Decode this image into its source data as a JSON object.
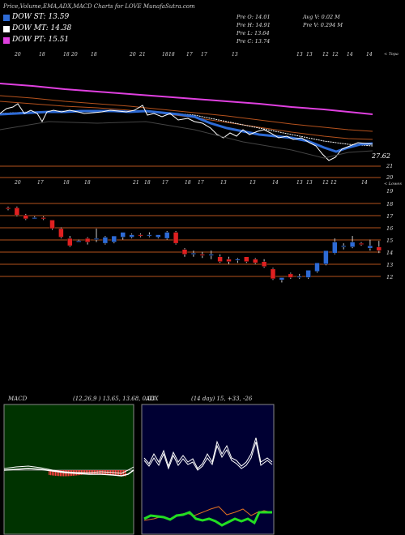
{
  "title": "Price,Volume,EMA,ADX,MACD Charts for LOVE MunafaSutra.com",
  "legend": [
    {
      "label": "DOW ST: 13.59",
      "color": "#2e6bd6",
      "icon": "square"
    },
    {
      "label": "DOW MT: 14.38",
      "color": "#ffffff",
      "icon": "square"
    },
    {
      "label": "DOW PT: 15.51",
      "color": "#e040e0",
      "icon": "square"
    }
  ],
  "stats": {
    "open": "Pre   O: 14.01",
    "high": "Pre   H: 14.91",
    "low": "Pre   L: 13.64",
    "close": "Pre   C: 13.74",
    "avgvol": "Avg V: 0.02  M",
    "prevol": "Pre   V: 0.294  M"
  },
  "top_day_labels": [
    "20",
    "18",
    "18",
    "20",
    "18",
    "20",
    "21",
    "18",
    "18",
    "17",
    "17",
    "13",
    "13",
    "13",
    "12",
    "12",
    "14",
    "14"
  ],
  "top_label": "< Topa",
  "ema_value_label": "27.62",
  "price_axis": [
    "21",
    "20",
    "19",
    "18",
    "17",
    "16",
    "15",
    "14",
    "13",
    "12"
  ],
  "mid_day_labels": [
    "20",
    "17",
    "18",
    "18",
    "21",
    "18",
    "17",
    "18",
    "17",
    "13",
    "13",
    "14",
    "13",
    "13",
    "12",
    "12",
    "14"
  ],
  "lower_label": "< Lowes",
  "macd": {
    "label": "MACD",
    "params": "(12,26,9 ) 13.65,  13.68,  0.03"
  },
  "adx": {
    "label": "ADX",
    "params": "(14  day) 15,  +33,  -26"
  },
  "chart_data": {
    "type": "candlestick",
    "candles": [
      {
        "o": 17.6,
        "h": 17.7,
        "c": 17.5,
        "l": 17.4
      },
      {
        "o": 17.6,
        "h": 17.7,
        "c": 17.0,
        "l": 16.9
      },
      {
        "o": 17.0,
        "h": 17.1,
        "c": 16.7,
        "l": 16.6
      },
      {
        "o": 16.8,
        "h": 16.9,
        "c": 16.8,
        "l": 16.7
      },
      {
        "o": 16.8,
        "h": 16.9,
        "c": 16.7,
        "l": 16.6
      },
      {
        "o": 16.6,
        "h": 16.6,
        "c": 15.9,
        "l": 15.8
      },
      {
        "o": 15.9,
        "h": 16.0,
        "c": 15.2,
        "l": 15.1
      },
      {
        "o": 15.1,
        "h": 15.3,
        "c": 14.5,
        "l": 14.4
      },
      {
        "o": 14.9,
        "h": 15.0,
        "c": 14.9,
        "l": 14.8
      },
      {
        "o": 15.1,
        "h": 15.2,
        "c": 14.8,
        "l": 14.6
      },
      {
        "o": 15.1,
        "h": 15.9,
        "c": 15.1,
        "l": 14.8
      },
      {
        "o": 14.7,
        "h": 15.3,
        "c": 15.2,
        "l": 14.6
      },
      {
        "o": 14.8,
        "h": 15.3,
        "c": 15.3,
        "l": 14.7
      },
      {
        "o": 15.2,
        "h": 15.6,
        "c": 15.6,
        "l": 15.0
      },
      {
        "o": 15.2,
        "h": 15.5,
        "c": 15.4,
        "l": 15.1
      },
      {
        "o": 15.4,
        "h": 15.5,
        "c": 15.3,
        "l": 15.2
      },
      {
        "o": 15.4,
        "h": 15.6,
        "c": 15.4,
        "l": 15.2
      },
      {
        "o": 15.2,
        "h": 15.4,
        "c": 15.4,
        "l": 15.1
      },
      {
        "o": 15.1,
        "h": 15.7,
        "c": 15.6,
        "l": 15.0
      },
      {
        "o": 15.6,
        "h": 15.7,
        "c": 14.7,
        "l": 14.6
      },
      {
        "o": 14.2,
        "h": 14.3,
        "c": 13.8,
        "l": 13.6
      },
      {
        "o": 13.9,
        "h": 14.1,
        "c": 13.9,
        "l": 13.6
      },
      {
        "o": 13.8,
        "h": 14.0,
        "c": 13.7,
        "l": 13.5
      },
      {
        "o": 13.7,
        "h": 14.1,
        "c": 13.8,
        "l": 13.4
      },
      {
        "o": 13.6,
        "h": 13.8,
        "c": 13.2,
        "l": 13.1
      },
      {
        "o": 13.4,
        "h": 13.6,
        "c": 13.2,
        "l": 13.0
      },
      {
        "o": 13.3,
        "h": 13.5,
        "c": 13.4,
        "l": 13.1
      },
      {
        "o": 13.6,
        "h": 13.6,
        "c": 13.2,
        "l": 13.1
      },
      {
        "o": 13.4,
        "h": 13.5,
        "c": 13.1,
        "l": 13.0
      },
      {
        "o": 13.2,
        "h": 13.4,
        "c": 12.8,
        "l": 12.7
      },
      {
        "o": 12.6,
        "h": 12.7,
        "c": 11.8,
        "l": 11.7
      },
      {
        "o": 11.7,
        "h": 11.9,
        "c": 11.9,
        "l": 11.5
      },
      {
        "o": 12.2,
        "h": 12.3,
        "c": 11.9,
        "l": 11.8
      },
      {
        "o": 12.0,
        "h": 12.2,
        "c": 12.0,
        "l": 11.8
      },
      {
        "o": 11.9,
        "h": 12.5,
        "c": 12.5,
        "l": 11.8
      },
      {
        "o": 12.4,
        "h": 13.1,
        "c": 13.1,
        "l": 12.3
      },
      {
        "o": 13.0,
        "h": 14.1,
        "c": 14.1,
        "l": 12.9
      },
      {
        "o": 13.9,
        "h": 15.1,
        "c": 14.8,
        "l": 13.8
      },
      {
        "o": 14.5,
        "h": 14.7,
        "c": 14.5,
        "l": 14.2
      },
      {
        "o": 14.4,
        "h": 15.3,
        "c": 14.8,
        "l": 14.3
      },
      {
        "o": 14.7,
        "h": 14.8,
        "c": 14.6,
        "l": 14.5
      },
      {
        "o": 14.3,
        "h": 15.0,
        "c": 14.5,
        "l": 14.1
      },
      {
        "o": 14.4,
        "h": 14.9,
        "c": 14.1,
        "l": 13.9
      }
    ]
  },
  "colors": {
    "up": "#2e6bd6",
    "down": "#e02020",
    "grid": "#b5521d",
    "pt": "#e040e0",
    "st": "#2e6bd6",
    "mt": "#ffffff",
    "adx_green": "#22dd22",
    "adx_orange": "#e07020"
  }
}
